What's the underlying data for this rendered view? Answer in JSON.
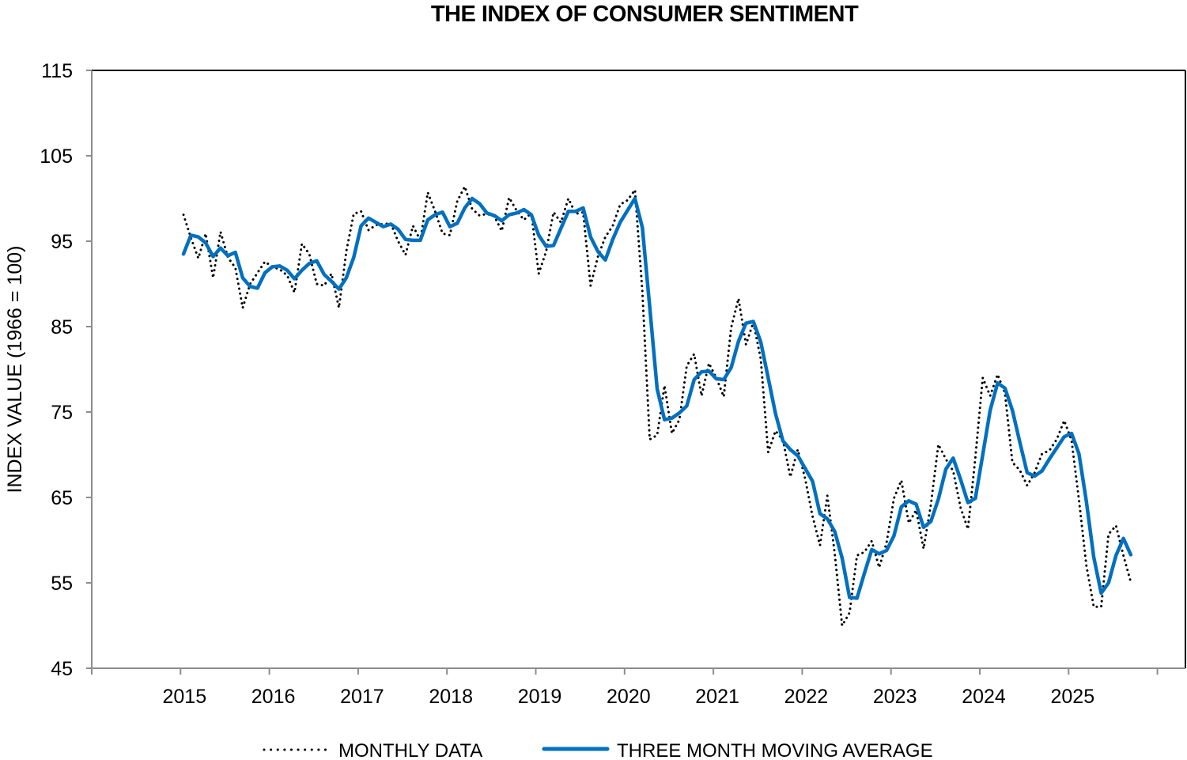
{
  "chart_data": {
    "type": "line",
    "title": "THE INDEX OF CONSUMER SENTIMENT",
    "xlabel": "",
    "ylabel": "INDEX VALUE (1966 = 100)",
    "ylim": [
      45,
      115
    ],
    "yticks": [
      45,
      55,
      65,
      75,
      85,
      95,
      105,
      115
    ],
    "xlim": [
      "2014-01",
      "2026-12"
    ],
    "xticks": [
      "2015",
      "2016",
      "2017",
      "2018",
      "2019",
      "2020",
      "2021",
      "2022",
      "2023",
      "2024",
      "2025"
    ],
    "grid": false,
    "legend": {
      "placement": "bottom",
      "entries": [
        "MONTHLY DATA",
        "THREE MONTH MOVING AVERAGE"
      ]
    },
    "start": "2015-01",
    "frequency": "monthly",
    "colors": {
      "monthly": "#000000",
      "moving_average": "#0070C0"
    },
    "series": [
      {
        "name": "MONTHLY DATA",
        "style": "dotted",
        "values": [
          98.1,
          95.4,
          93.0,
          95.9,
          90.7,
          96.1,
          93.1,
          91.9,
          87.2,
          90.0,
          91.3,
          92.6,
          92.0,
          91.7,
          91.0,
          89.0,
          94.7,
          93.5,
          90.0,
          89.8,
          91.2,
          87.2,
          93.8,
          98.2,
          98.5,
          96.3,
          96.9,
          97.0,
          97.1,
          95.0,
          93.4,
          96.8,
          95.1,
          100.7,
          98.5,
          95.9,
          95.7,
          99.7,
          101.4,
          98.8,
          98.0,
          98.2,
          97.9,
          96.2,
          100.1,
          98.6,
          97.5,
          98.3,
          91.2,
          93.8,
          98.4,
          97.2,
          100.0,
          98.2,
          98.4,
          89.8,
          93.2,
          95.5,
          96.8,
          99.3,
          99.8,
          101.0,
          89.1,
          71.8,
          72.3,
          78.1,
          72.5,
          74.1,
          80.4,
          81.8,
          76.9,
          80.7,
          79.0,
          76.8,
          84.9,
          88.3,
          82.9,
          85.5,
          81.2,
          70.3,
          72.8,
          71.7,
          67.4,
          70.6,
          67.2,
          62.8,
          59.4,
          65.2,
          58.4,
          50.0,
          51.5,
          58.2,
          58.6,
          59.9,
          56.8,
          59.7,
          64.9,
          67.0,
          62.0,
          63.5,
          59.0,
          64.2,
          71.2,
          69.5,
          68.1,
          63.8,
          61.3,
          69.7,
          79.0,
          76.9,
          79.4,
          77.2,
          69.1,
          68.2,
          66.4,
          67.9,
          70.1,
          70.5,
          71.8,
          74.0,
          71.7,
          64.7,
          57.0,
          52.2,
          52.2,
          60.7,
          61.7,
          58.2,
          55.1
        ]
      },
      {
        "name": "THREE MONTH MOVING AVERAGE",
        "style": "solid",
        "values": [
          93.5,
          95.7,
          95.5,
          94.8,
          93.2,
          94.2,
          93.3,
          93.7,
          90.7,
          89.7,
          89.5,
          91.3,
          92.0,
          92.1,
          91.6,
          90.6,
          91.6,
          92.4,
          92.7,
          91.1,
          90.3,
          89.4,
          90.7,
          93.1,
          96.8,
          97.7,
          97.2,
          96.7,
          97.0,
          96.4,
          95.2,
          95.1,
          95.1,
          97.5,
          98.1,
          98.4,
          96.7,
          97.1,
          98.9,
          100.0,
          99.4,
          98.3,
          98.0,
          97.4,
          98.1,
          98.3,
          98.7,
          98.1,
          95.7,
          94.4,
          94.5,
          96.5,
          98.5,
          98.5,
          98.9,
          95.5,
          93.8,
          92.8,
          95.2,
          97.2,
          98.6,
          100.0,
          96.6,
          87.3,
          77.7,
          74.1,
          74.3,
          74.9,
          75.7,
          78.8,
          79.7,
          79.8,
          78.9,
          78.8,
          80.2,
          83.3,
          85.4,
          85.6,
          83.2,
          79.0,
          74.8,
          71.6,
          70.6,
          69.9,
          68.4,
          66.9,
          63.1,
          62.5,
          61.0,
          57.9,
          53.3,
          53.2,
          56.1,
          58.9,
          58.4,
          58.8,
          60.5,
          63.9,
          64.6,
          64.2,
          61.5,
          62.2,
          64.8,
          68.3,
          69.6,
          67.1,
          64.4,
          64.9,
          70.0,
          75.2,
          78.4,
          77.8,
          75.2,
          71.5,
          67.9,
          67.5,
          68.1,
          69.5,
          70.8,
          72.1,
          72.5,
          70.1,
          64.5,
          58.0,
          53.8,
          55.0,
          58.2,
          60.2,
          58.3
        ]
      }
    ]
  }
}
